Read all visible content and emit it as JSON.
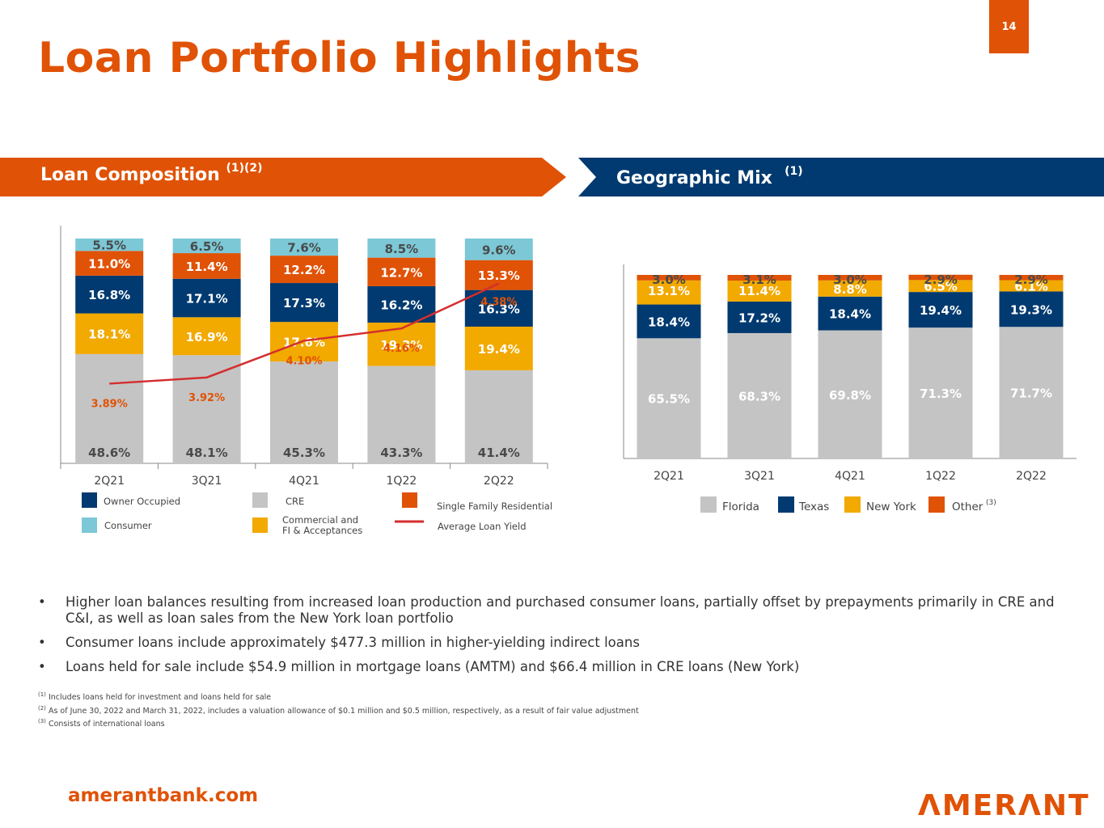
{
  "page_number": "14",
  "title": "Loan Portfolio Highlights",
  "colors": {
    "orange": "#e05206",
    "navy": "#003a70",
    "gold": "#f2a900",
    "gray": "#c4c4c4",
    "lightblue": "#7cc8d6",
    "line": "#d42e2e"
  },
  "banners": {
    "left": {
      "label": "Loan Composition",
      "sup": "(1)(2)"
    },
    "right": {
      "label": "Geographic Mix",
      "sup": "(1)"
    }
  },
  "chart_data": [
    {
      "type": "bar",
      "stacked": true,
      "categories": [
        "2Q21",
        "3Q21",
        "4Q21",
        "1Q22",
        "2Q22"
      ],
      "series": [
        {
          "name": "CRE",
          "color": "#c4c4c4",
          "label_color": "#4a4a4a",
          "values": [
            48.6,
            48.1,
            45.3,
            43.3,
            41.4
          ],
          "labels": [
            "48.6%",
            "48.1%",
            "45.3%",
            "43.3%",
            "41.4%"
          ]
        },
        {
          "name": "Commercial and FI & Acceptances",
          "color": "#f2a900",
          "label_color": "#ffffff",
          "values": [
            18.1,
            16.9,
            17.6,
            19.3,
            19.4
          ],
          "labels": [
            "18.1%",
            "16.9%",
            "17.6%",
            "19.3%",
            "19.4%"
          ]
        },
        {
          "name": "Owner Occupied",
          "color": "#003a70",
          "label_color": "#ffffff",
          "values": [
            16.8,
            17.1,
            17.3,
            16.2,
            16.3
          ],
          "labels": [
            "16.8%",
            "17.1%",
            "17.3%",
            "16.2%",
            "16.3%"
          ]
        },
        {
          "name": "Single Family Residential",
          "color": "#e05206",
          "label_color": "#ffffff",
          "values": [
            11.0,
            11.4,
            12.2,
            12.7,
            13.3
          ],
          "labels": [
            "11.0%",
            "11.4%",
            "12.2%",
            "12.7%",
            "13.3%"
          ]
        },
        {
          "name": "Consumer",
          "color": "#7cc8d6",
          "label_color": "#4a4a4a",
          "values": [
            5.5,
            6.5,
            7.6,
            8.5,
            9.6
          ],
          "labels": [
            "5.5%",
            "6.5%",
            "7.6%",
            "8.5%",
            "9.6%"
          ]
        }
      ],
      "line": {
        "name": "Average Loan Yield",
        "color": "#d42e2e",
        "values": [
          3.89,
          3.92,
          4.1,
          4.16,
          4.38
        ],
        "labels": [
          "3.89%",
          "3.92%",
          "4.10%",
          "4.16%",
          "4.38%"
        ]
      },
      "legend": [
        {
          "name": "Owner Occupied",
          "color": "#003a70"
        },
        {
          "name": "CRE",
          "color": "#c4c4c4"
        },
        {
          "name": "Single Family Residential",
          "color": "#e05206"
        },
        {
          "name": "Consumer",
          "color": "#7cc8d6"
        },
        {
          "name": "Commercial and",
          "name2": "FI & Acceptances",
          "color": "#f2a900"
        },
        {
          "name": "Average Loan Yield",
          "color": "#d42e2e",
          "line": true
        }
      ],
      "ylim": [
        0,
        100
      ]
    },
    {
      "type": "bar",
      "stacked": true,
      "categories": [
        "2Q21",
        "3Q21",
        "4Q21",
        "1Q22",
        "2Q22"
      ],
      "series": [
        {
          "name": "Florida",
          "color": "#c4c4c4",
          "label_color": "#ffffff",
          "values": [
            65.5,
            68.3,
            69.8,
            71.3,
            71.7
          ],
          "labels": [
            "65.5%",
            "68.3%",
            "69.8%",
            "71.3%",
            "71.7%"
          ]
        },
        {
          "name": "Texas",
          "color": "#003a70",
          "label_color": "#ffffff",
          "values": [
            18.4,
            17.2,
            18.4,
            19.4,
            19.3
          ],
          "labels": [
            "18.4%",
            "17.2%",
            "18.4%",
            "19.4%",
            "19.3%"
          ]
        },
        {
          "name": "New York",
          "color": "#f2a900",
          "label_color": "#ffffff",
          "values": [
            13.1,
            11.4,
            8.8,
            6.5,
            6.1
          ],
          "labels": [
            "13.1%",
            "11.4%",
            "8.8%",
            "6.5%",
            "6.1%"
          ]
        },
        {
          "name": "Other",
          "color": "#e05206",
          "label_color": "#4a4a4a",
          "values": [
            3.0,
            3.1,
            3.0,
            2.9,
            2.9
          ],
          "labels": [
            "3.0%",
            "3.1%",
            "3.0%",
            "2.9%",
            "2.9%"
          ]
        }
      ],
      "legend": [
        {
          "name": "Florida",
          "color": "#c4c4c4"
        },
        {
          "name": "Texas",
          "color": "#003a70"
        },
        {
          "name": "New York",
          "color": "#f2a900"
        },
        {
          "name": "Other",
          "sup": "(3)",
          "color": "#e05206"
        }
      ],
      "ylim": [
        0,
        100
      ]
    }
  ],
  "bullets": [
    "Higher loan balances resulting from increased loan production and purchased consumer loans, partially offset by prepayments primarily in CRE and C&I, as well as loan sales from the New York loan portfolio",
    "Consumer loans include approximately $477.3 million in higher-yielding indirect loans",
    "Loans held for sale include $54.9 million in mortgage loans (AMTM) and $66.4 million in CRE loans (New York)"
  ],
  "bullet_symbol": "•",
  "footnotes": [
    {
      "mark": "(1)",
      "text": "Includes loans held for investment and loans held for sale"
    },
    {
      "mark": "(2)",
      "text": "As of June 30, 2022 and March 31, 2022, includes a valuation allowance of $0.1 million and $0.5 million, respectively, as a result of fair value adjustment"
    },
    {
      "mark": "(3)",
      "text": "Consists of international loans"
    }
  ],
  "website": "amerantbank.com",
  "logo_text": "ΛMERΛNT"
}
